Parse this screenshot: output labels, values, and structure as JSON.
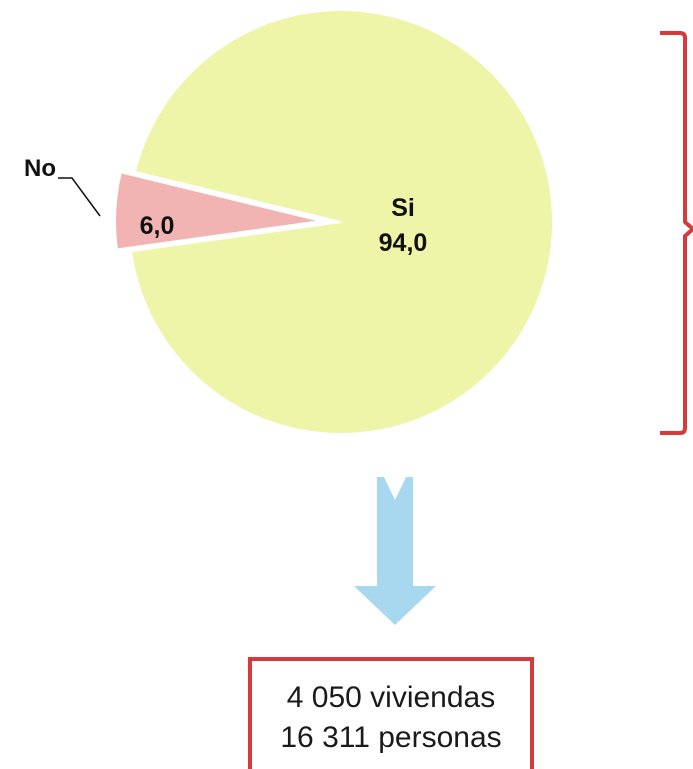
{
  "chart_data": {
    "type": "pie",
    "slices": [
      {
        "label": "Si",
        "value": 94.0,
        "value_label": "94,0",
        "color": "#eef4a8"
      },
      {
        "label": "No",
        "value": 6.0,
        "value_label": "6,0",
        "color": "#f2b3b3",
        "exploded": true
      }
    ]
  },
  "summary": {
    "line1": "4 050 viviendas",
    "line2": "16 311 personas"
  },
  "colors": {
    "brace": "#d63a3a",
    "arrow": "#a8d8ef",
    "box_border": "#d63a3a"
  }
}
